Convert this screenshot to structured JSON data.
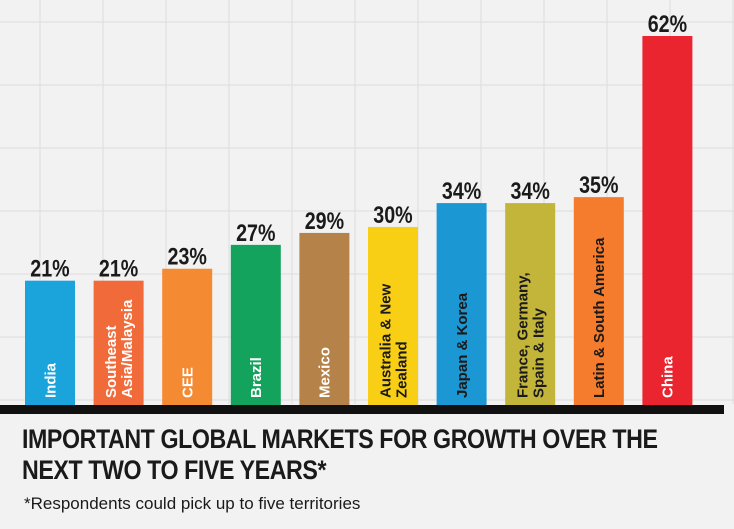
{
  "chart_data": {
    "type": "bar",
    "categories": [
      [
        "India"
      ],
      [
        "Southeast",
        "Asia/Malaysia"
      ],
      [
        "CEE"
      ],
      [
        "Brazil"
      ],
      [
        "Mexico"
      ],
      [
        "Australia & New",
        "Zealand"
      ],
      [
        "Japan & Korea"
      ],
      [
        "France, Germany,",
        "Spain & Italy"
      ],
      [
        "Latin & South America"
      ],
      [
        "China"
      ]
    ],
    "values": [
      21,
      21,
      23,
      27,
      29,
      30,
      34,
      34,
      35,
      62
    ],
    "value_labels": [
      "21%",
      "21%",
      "23%",
      "27%",
      "29%",
      "30%",
      "34%",
      "34%",
      "35%",
      "62%"
    ],
    "ylim": [
      0,
      62
    ],
    "unit": "%",
    "colors": [
      "#1ba4dc",
      "#f06a3a",
      "#f48a32",
      "#14a35c",
      "#b5834a",
      "#f9cf16",
      "#1b97d4",
      "#c3b43a",
      "#f47c2c",
      "#ea2530"
    ],
    "label_colors": [
      "#ffffff",
      "#ffffff",
      "#ffffff",
      "#ffffff",
      "#ffffff",
      "#1a1a1a",
      "#1a1a1a",
      "#1a1a1a",
      "#1a1a1a",
      "#ffffff"
    ],
    "grid": true,
    "legend": "none",
    "title": "IMPORTANT GLOBAL MARKETS FOR GROWTH OVER THE NEXT TWO TO FIVE YEARS*",
    "title_lines": [
      "IMPORTANT GLOBAL MARKETS FOR GROWTH OVER THE",
      "NEXT TWO TO FIVE YEARS*"
    ],
    "footnote": "*Respondents could pick up to five territories"
  }
}
